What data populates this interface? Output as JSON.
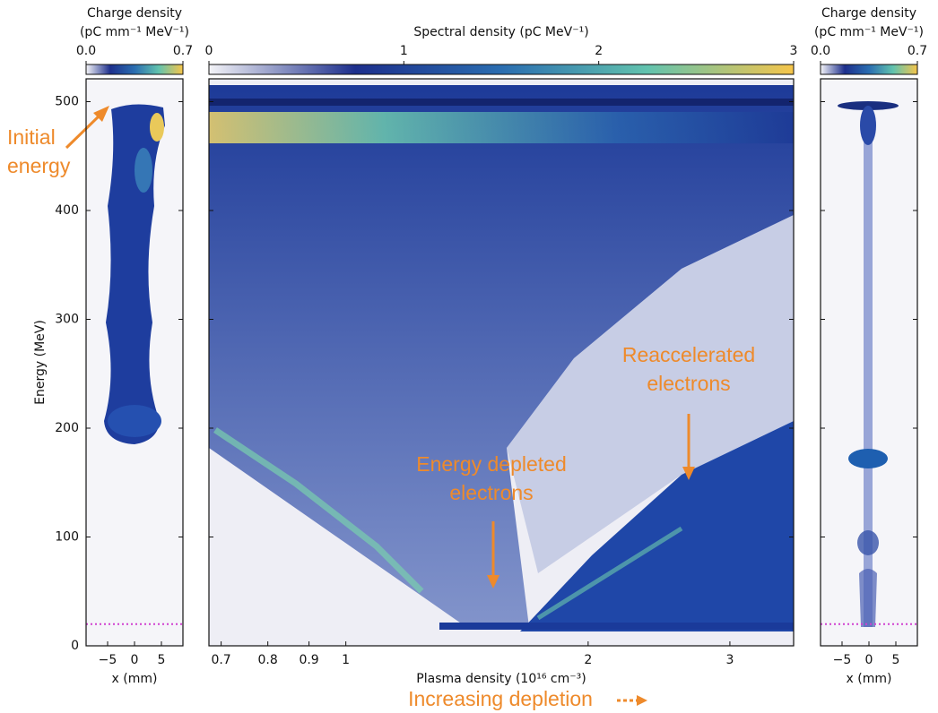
{
  "chart_data": [
    {
      "type": "heatmap",
      "colorbar": {
        "label": [
          "Charge density",
          "(pC mm⁻¹ MeV⁻¹)"
        ],
        "lim": [
          0,
          0.7
        ],
        "ticks": [
          {
            "value": 0,
            "label": "0.0"
          },
          {
            "value": 0.7,
            "label": "0.7"
          }
        ]
      },
      "colormap": [
        "#f4f4f8",
        "#1d2f8c",
        "#2a6db0",
        "#62c3ae",
        "#f6c54a"
      ],
      "xlabel": "x (mm)",
      "ylabel": "Energy (MeV)",
      "xlim": [
        -9,
        9
      ],
      "xticks": [
        {
          "value": -5,
          "label": "−5"
        },
        0,
        5
      ],
      "ylim": [
        0,
        521
      ],
      "yticks": [
        0,
        100,
        200,
        300,
        400,
        500
      ],
      "reference_energy": 20,
      "reference_color": "#d040d0",
      "annotation_color": "#ee8a2b",
      "annotations": [
        {
          "lines": [
            "Initial",
            "energy"
          ]
        }
      ]
    },
    {
      "type": "heatmap",
      "colorbar": {
        "label": [
          "Spectral density (pC MeV⁻¹)"
        ],
        "lim": [
          0,
          3
        ],
        "ticks": [
          0,
          1,
          2,
          3
        ]
      },
      "colormap": [
        "#f4f4f8",
        "#1d2f8c",
        "#2a6db0",
        "#62c3ae",
        "#f6c54a"
      ],
      "xlabel": "Plasma density (10¹⁶ cm⁻³)",
      "xscale": "log",
      "xlim": [
        0.676,
        3.6
      ],
      "xticks": [
        0.7,
        0.8,
        0.9,
        1,
        2,
        3
      ],
      "ylim": [
        0,
        521
      ],
      "yticks": [
        0,
        100,
        200,
        300,
        400,
        500
      ],
      "annotation_color": "#ee8a2b",
      "annotations": [
        {
          "lines": [
            "Energy depleted",
            "electrons"
          ]
        },
        {
          "lines": [
            "Reaccelerated",
            "electrons"
          ]
        },
        {
          "lines": [
            "Increasing depletion"
          ]
        }
      ]
    },
    {
      "type": "heatmap",
      "colorbar": {
        "label": [
          "Charge density",
          "(pC mm⁻¹ MeV⁻¹)"
        ],
        "lim": [
          0,
          0.7
        ],
        "ticks": [
          {
            "value": 0,
            "label": "0.0"
          },
          {
            "value": 0.7,
            "label": "0.7"
          }
        ]
      },
      "colormap": [
        "#f4f4f8",
        "#1d2f8c",
        "#2a6db0",
        "#62c3ae",
        "#f6c54a"
      ],
      "xlabel": "x (mm)",
      "xlim": [
        -9,
        9
      ],
      "xticks": [
        {
          "value": -5,
          "label": "−5"
        },
        0,
        5
      ],
      "ylim": [
        0,
        521
      ],
      "yticks": [
        0,
        100,
        200,
        300,
        400,
        500
      ],
      "reference_energy": 20,
      "reference_color": "#d040d0"
    }
  ]
}
